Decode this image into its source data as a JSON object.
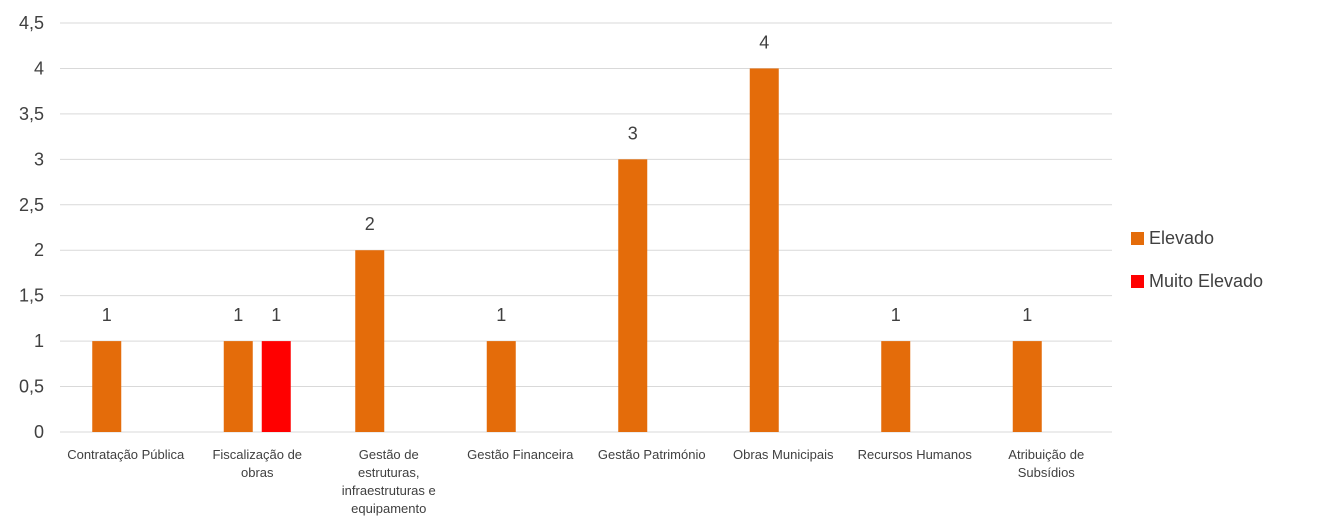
{
  "chart_data": {
    "type": "bar",
    "categories": [
      [
        "Contratação Pública"
      ],
      [
        "Fiscalização de",
        "obras"
      ],
      [
        "Gestão de",
        "estruturas,",
        "infraestruturas e",
        "equipamento"
      ],
      [
        "Gestão Financeira"
      ],
      [
        "Gestão Património"
      ],
      [
        "Obras Municipais"
      ],
      [
        "Recursos Humanos"
      ],
      [
        "Atribuição de",
        "Subsídios"
      ]
    ],
    "series": [
      {
        "name": "Elevado",
        "color": "#E46C0A",
        "values": [
          1,
          1,
          2,
          1,
          3,
          4,
          1,
          1
        ]
      },
      {
        "name": "Muito Elevado",
        "color": "#FF0000",
        "values": [
          null,
          1,
          null,
          null,
          null,
          null,
          null,
          null
        ]
      }
    ],
    "y_ticks": [
      "0",
      "0,5",
      "1",
      "1,5",
      "2",
      "2,5",
      "3",
      "3,5",
      "4",
      "4,5"
    ],
    "ylim": [
      0,
      4.5
    ],
    "grid": true,
    "legend_position": "right",
    "title": "",
    "xlabel": "",
    "ylabel": ""
  }
}
